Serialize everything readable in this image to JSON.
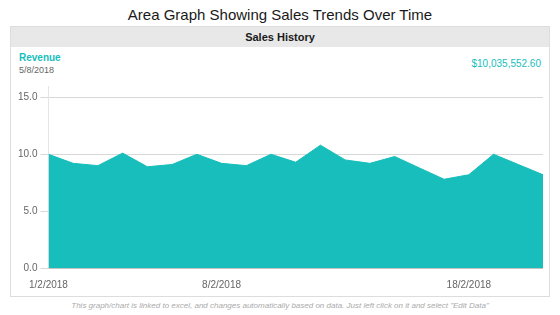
{
  "chart_data": {
    "type": "area",
    "title": "Area Graph Showing Sales Trends Over Time",
    "subtitle": "Sales History",
    "annotations": [
      "Revenue",
      "5/8/2018",
      "$10,035,552.60",
      "This graph/chart is linked to excel, and changes automatically based on data.  Just left click on it and select \"Edit Data\""
    ],
    "x": [
      0,
      1,
      2,
      3,
      4,
      5,
      6,
      7,
      8,
      9,
      10,
      11,
      12,
      13,
      14,
      15,
      16,
      17,
      18,
      19,
      20
    ],
    "values": [
      10.0,
      9.2,
      9.0,
      10.1,
      8.9,
      9.1,
      10.0,
      9.2,
      9.0,
      10.0,
      9.3,
      10.8,
      9.5,
      9.2,
      9.8,
      8.8,
      7.8,
      8.2,
      10.0,
      9.1,
      8.2
    ],
    "color": "#17BEBB",
    "xlim": [
      0,
      20
    ],
    "xticks": [
      {
        "value": 0,
        "label": "1/2/2018"
      },
      {
        "value": 7,
        "label": "8/2/2018"
      },
      {
        "value": 17,
        "label": "18/2/2018"
      }
    ],
    "ylim": [
      0,
      16.0
    ],
    "yticks": [
      {
        "value": 0.0,
        "label": "0.0"
      },
      {
        "value": 5.0,
        "label": "5.0"
      },
      {
        "value": 10.0,
        "label": "10.0"
      },
      {
        "value": 15.0,
        "label": "15.0"
      }
    ],
    "grid": true
  }
}
